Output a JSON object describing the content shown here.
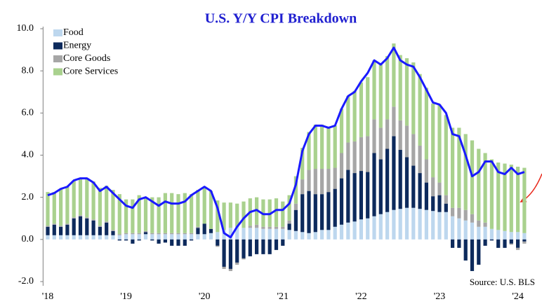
{
  "chart_data": {
    "type": "stacked_bar_line",
    "title": "U.S. Y/Y CPI Breakdown",
    "source": "Source: U.S. BLS",
    "categories": [
      "'18",
      null,
      null,
      null,
      null,
      null,
      null,
      null,
      null,
      null,
      null,
      null,
      "'19",
      null,
      null,
      null,
      null,
      null,
      null,
      null,
      null,
      null,
      null,
      null,
      "'20",
      null,
      null,
      null,
      null,
      null,
      null,
      null,
      null,
      null,
      null,
      null,
      "'21",
      null,
      null,
      null,
      null,
      null,
      null,
      null,
      null,
      null,
      null,
      null,
      "'22",
      null,
      null,
      null,
      null,
      null,
      null,
      null,
      null,
      null,
      null,
      null,
      "'23",
      null,
      null,
      null,
      null,
      null,
      null,
      null,
      null,
      null,
      null,
      null,
      "'24",
      null
    ],
    "series": [
      {
        "name": "Food",
        "color": "#bdd7ee",
        "values": [
          0.2,
          0.2,
          0.2,
          0.2,
          0.2,
          0.2,
          0.2,
          0.2,
          0.2,
          0.2,
          0.2,
          0.2,
          0.25,
          0.25,
          0.25,
          0.25,
          0.25,
          0.25,
          0.25,
          0.25,
          0.25,
          0.25,
          0.25,
          0.25,
          0.25,
          0.3,
          0.35,
          0.45,
          0.55,
          0.6,
          0.55,
          0.55,
          0.55,
          0.5,
          0.5,
          0.5,
          0.5,
          0.45,
          0.4,
          0.35,
          0.3,
          0.35,
          0.45,
          0.45,
          0.6,
          0.7,
          0.8,
          0.85,
          0.95,
          1.0,
          1.1,
          1.2,
          1.3,
          1.4,
          1.45,
          1.5,
          1.5,
          1.45,
          1.4,
          1.35,
          1.3,
          1.3,
          1.1,
          1.0,
          0.9,
          0.8,
          0.6,
          0.6,
          0.5,
          0.45,
          0.4,
          0.35,
          0.35,
          0.3
        ]
      },
      {
        "name": "Energy",
        "color": "#0d2a5c",
        "values": [
          0.4,
          0.5,
          0.4,
          0.5,
          0.8,
          0.9,
          0.8,
          0.7,
          0.4,
          0.6,
          0.2,
          -0.05,
          -0.05,
          -0.2,
          -0.05,
          0.1,
          -0.05,
          -0.2,
          -0.15,
          -0.3,
          -0.3,
          -0.3,
          -0.05,
          0.3,
          0.5,
          0.2,
          -0.3,
          -1.3,
          -1.4,
          -1.1,
          -0.9,
          -0.8,
          -0.7,
          -0.7,
          -0.7,
          -0.5,
          -0.3,
          0.3,
          1.0,
          1.8,
          2.0,
          1.8,
          1.7,
          1.8,
          1.8,
          2.2,
          2.5,
          2.3,
          2.3,
          2.2,
          3.0,
          2.6,
          3.0,
          3.5,
          2.8,
          2.4,
          2.0,
          1.7,
          1.3,
          0.7,
          0.8,
          0.4,
          -0.4,
          -0.4,
          -1.0,
          -1.5,
          -1.2,
          -0.3,
          -0.05,
          -0.4,
          -0.4,
          -0.2,
          -0.4,
          -0.1
        ]
      },
      {
        "name": "Core Goods",
        "color": "#a6a6a6",
        "values": [
          0.05,
          0.05,
          0.05,
          0.05,
          0.05,
          0.05,
          0.05,
          0.05,
          0.05,
          0.05,
          0.05,
          0.05,
          0.05,
          0.05,
          0.05,
          0.05,
          0.05,
          0.05,
          0.05,
          0.05,
          0.05,
          0.05,
          0.05,
          0.05,
          0,
          0,
          -0.05,
          -0.1,
          -0.1,
          -0.1,
          -0.05,
          0.1,
          0.15,
          0.1,
          0.1,
          0.1,
          0.1,
          0.15,
          0.3,
          0.7,
          1.0,
          1.2,
          1.2,
          1.1,
          1.0,
          1.2,
          1.3,
          1.5,
          1.6,
          1.7,
          1.6,
          1.5,
          1.4,
          1.4,
          1.4,
          1.5,
          1.5,
          1.3,
          1.1,
          0.9,
          0.6,
          0.4,
          0.4,
          0.5,
          0.5,
          0.4,
          0.3,
          0.2,
          0,
          0,
          0,
          -0.05,
          -0.1,
          -0.1
        ]
      },
      {
        "name": "Core Services",
        "color": "#a9d18e",
        "values": [
          1.6,
          1.5,
          1.75,
          1.75,
          1.75,
          1.75,
          1.85,
          1.8,
          1.8,
          1.7,
          1.9,
          1.9,
          1.6,
          1.6,
          1.8,
          1.6,
          1.7,
          1.7,
          1.9,
          1.9,
          1.85,
          1.9,
          1.85,
          1.75,
          1.75,
          1.8,
          1.5,
          1.3,
          1.2,
          1.1,
          1.25,
          1.3,
          1.3,
          1.3,
          1.3,
          1.35,
          1.2,
          1.2,
          1.3,
          1.5,
          1.8,
          2.1,
          2.1,
          2.0,
          2.0,
          2.1,
          2.2,
          2.4,
          2.6,
          2.8,
          2.8,
          3.0,
          3.0,
          3.0,
          3.1,
          3.2,
          3.4,
          3.4,
          3.4,
          3.5,
          3.7,
          3.8,
          3.8,
          3.8,
          3.6,
          3.5,
          3.4,
          3.3,
          3.3,
          3.2,
          3.2,
          3.2,
          3.1,
          3.1
        ]
      }
    ],
    "line": {
      "color": "#1a1aff",
      "values": [
        2.1,
        2.2,
        2.4,
        2.5,
        2.8,
        2.9,
        2.9,
        2.7,
        2.3,
        2.5,
        2.2,
        1.9,
        1.6,
        1.5,
        1.9,
        2.0,
        1.8,
        1.6,
        1.8,
        1.7,
        1.7,
        1.8,
        2.1,
        2.3,
        2.5,
        2.3,
        1.5,
        0.3,
        0.1,
        0.6,
        1.0,
        1.3,
        1.4,
        1.2,
        1.2,
        1.4,
        1.4,
        1.7,
        2.6,
        4.2,
        5.0,
        5.4,
        5.4,
        5.3,
        5.4,
        6.2,
        6.8,
        7.0,
        7.5,
        7.9,
        8.5,
        8.3,
        8.6,
        9.1,
        8.5,
        8.3,
        8.2,
        7.7,
        7.1,
        6.5,
        6.4,
        6.0,
        5.0,
        4.9,
        4.0,
        3.0,
        3.2,
        3.7,
        3.7,
        3.2,
        3.1,
        3.4,
        3.1,
        3.2
      ]
    },
    "ylim": [
      -2.2,
      10.1
    ],
    "yticks": [
      {
        "value": -2,
        "label": "-2.0"
      },
      {
        "value": 0,
        "label": "0.0"
      },
      {
        "value": 2,
        "label": "2.0"
      },
      {
        "value": 4,
        "label": "4.0"
      },
      {
        "value": 6,
        "label": "6.0"
      },
      {
        "value": 8,
        "label": "8.0"
      },
      {
        "value": 10,
        "label": "10.0"
      }
    ],
    "legend": "upper left"
  }
}
